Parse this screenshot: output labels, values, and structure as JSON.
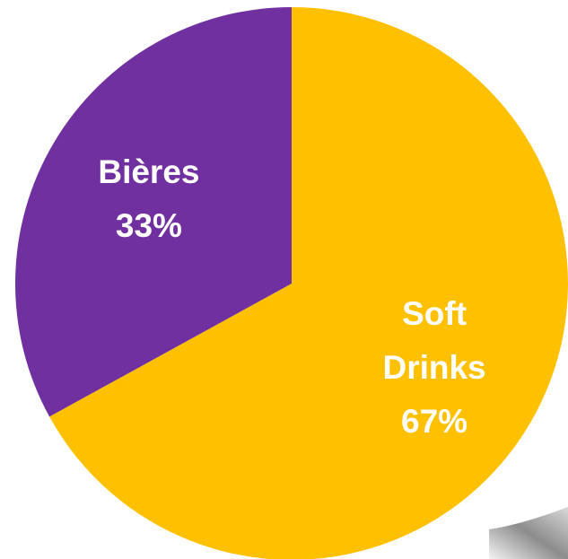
{
  "chart_data": {
    "type": "pie",
    "categories": [
      "Soft Drinks",
      "Bières"
    ],
    "values": [
      67,
      33
    ],
    "value_labels": [
      "67%",
      "33%"
    ],
    "colors": [
      "#FFC000",
      "#7030A0"
    ]
  }
}
